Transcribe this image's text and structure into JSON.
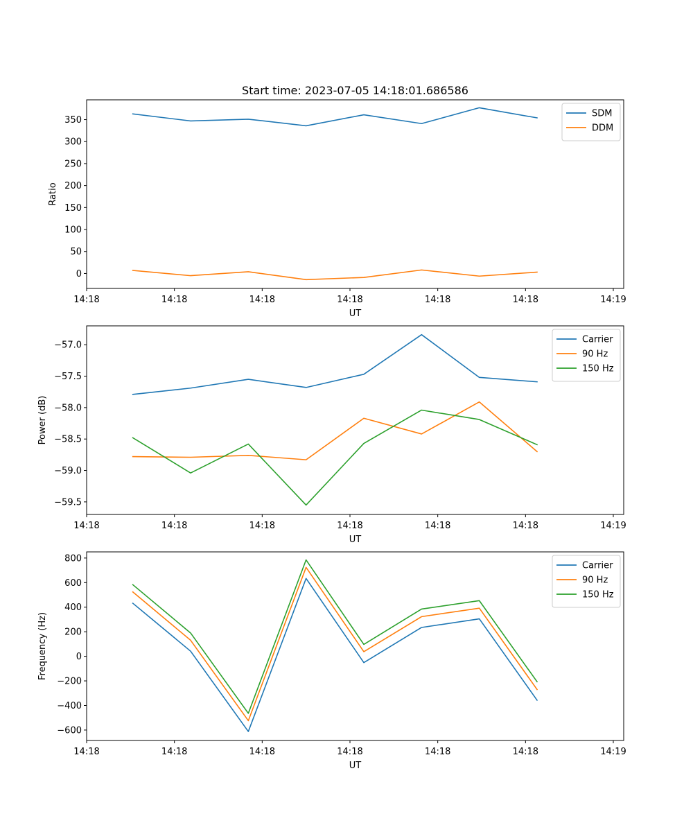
{
  "figure_title": "Start time: 2023-07-05 14:18:01.686586",
  "colors": {
    "blue": "#1f77b4",
    "orange": "#ff7f0e",
    "green": "#2ca02c"
  },
  "chart_data": [
    {
      "type": "line",
      "title": "Start time: 2023-07-05 14:18:01.686586",
      "xlabel": "UT",
      "ylabel": "Ratio",
      "xlim": [
        -0.8,
        8.5
      ],
      "ylim": [
        -34,
        395
      ],
      "x_ticks": [
        -0.8,
        0.72,
        2.24,
        3.76,
        5.28,
        6.8,
        8.32
      ],
      "x_tick_labels": [
        "14:18",
        "14:18",
        "14:18",
        "14:18",
        "14:18",
        "14:18",
        "14:19"
      ],
      "y_ticks": [
        0,
        50,
        100,
        150,
        200,
        250,
        300,
        350
      ],
      "y_tick_labels": [
        "0",
        "50",
        "100",
        "150",
        "200",
        "250",
        "300",
        "350"
      ],
      "legend_position": "upper right",
      "x": [
        0,
        1,
        2,
        3,
        4,
        5,
        6,
        7
      ],
      "series": [
        {
          "name": "SDM",
          "color": "#1f77b4",
          "values": [
            363,
            347,
            351,
            336,
            361,
            341,
            377,
            354
          ]
        },
        {
          "name": "DDM",
          "color": "#ff7f0e",
          "values": [
            7,
            -5,
            4,
            -14,
            -9,
            8,
            -6,
            3
          ]
        }
      ]
    },
    {
      "type": "line",
      "title": "",
      "xlabel": "UT",
      "ylabel": "Power (dB)",
      "xlim": [
        -0.8,
        8.5
      ],
      "ylim": [
        -59.7,
        -56.7
      ],
      "x_ticks": [
        -0.8,
        0.72,
        2.24,
        3.76,
        5.28,
        6.8,
        8.32
      ],
      "x_tick_labels": [
        "14:18",
        "14:18",
        "14:18",
        "14:18",
        "14:18",
        "14:18",
        "14:19"
      ],
      "y_ticks": [
        -59.5,
        -59.0,
        -58.5,
        -58.0,
        -57.5,
        -57.0
      ],
      "y_tick_labels": [
        "−59.5",
        "−59.0",
        "−58.5",
        "−58.0",
        "−57.5",
        "−57.0"
      ],
      "legend_position": "upper right",
      "x": [
        0,
        1,
        2,
        3,
        4,
        5,
        6,
        7
      ],
      "series": [
        {
          "name": "Carrier",
          "color": "#1f77b4",
          "values": [
            -57.79,
            -57.69,
            -57.55,
            -57.68,
            -57.47,
            -56.84,
            -57.52,
            -57.59
          ]
        },
        {
          "name": "90 Hz",
          "color": "#ff7f0e",
          "values": [
            -58.78,
            -58.79,
            -58.76,
            -58.83,
            -58.17,
            -58.42,
            -57.91,
            -58.7
          ]
        },
        {
          "name": "150 Hz",
          "color": "#2ca02c",
          "values": [
            -58.48,
            -59.04,
            -58.58,
            -59.55,
            -58.57,
            -58.04,
            -58.19,
            -58.59
          ]
        }
      ]
    },
    {
      "type": "line",
      "title": "",
      "xlabel": "UT",
      "ylabel": "Frequency (Hz)",
      "xlim": [
        -0.8,
        8.5
      ],
      "ylim": [
        -685,
        850
      ],
      "x_ticks": [
        -0.8,
        0.72,
        2.24,
        3.76,
        5.28,
        6.8,
        8.32
      ],
      "x_tick_labels": [
        "14:18",
        "14:18",
        "14:18",
        "14:18",
        "14:18",
        "14:18",
        "14:19"
      ],
      "y_ticks": [
        -600,
        -400,
        -200,
        0,
        200,
        400,
        600,
        800
      ],
      "y_tick_labels": [
        "−600",
        "−400",
        "−200",
        "0",
        "200",
        "400",
        "600",
        "800"
      ],
      "legend_position": "upper right",
      "x": [
        0,
        1,
        2,
        3,
        4,
        5,
        6,
        7
      ],
      "series": [
        {
          "name": "Carrier",
          "color": "#1f77b4",
          "values": [
            432,
            42,
            -612,
            634,
            -51,
            235,
            305,
            -357
          ]
        },
        {
          "name": "90 Hz",
          "color": "#ff7f0e",
          "values": [
            524,
            131,
            -524,
            724,
            38,
            323,
            392,
            -270
          ]
        },
        {
          "name": "150 Hz",
          "color": "#2ca02c",
          "values": [
            583,
            190,
            -464,
            785,
            97,
            385,
            453,
            -207
          ]
        }
      ]
    }
  ]
}
